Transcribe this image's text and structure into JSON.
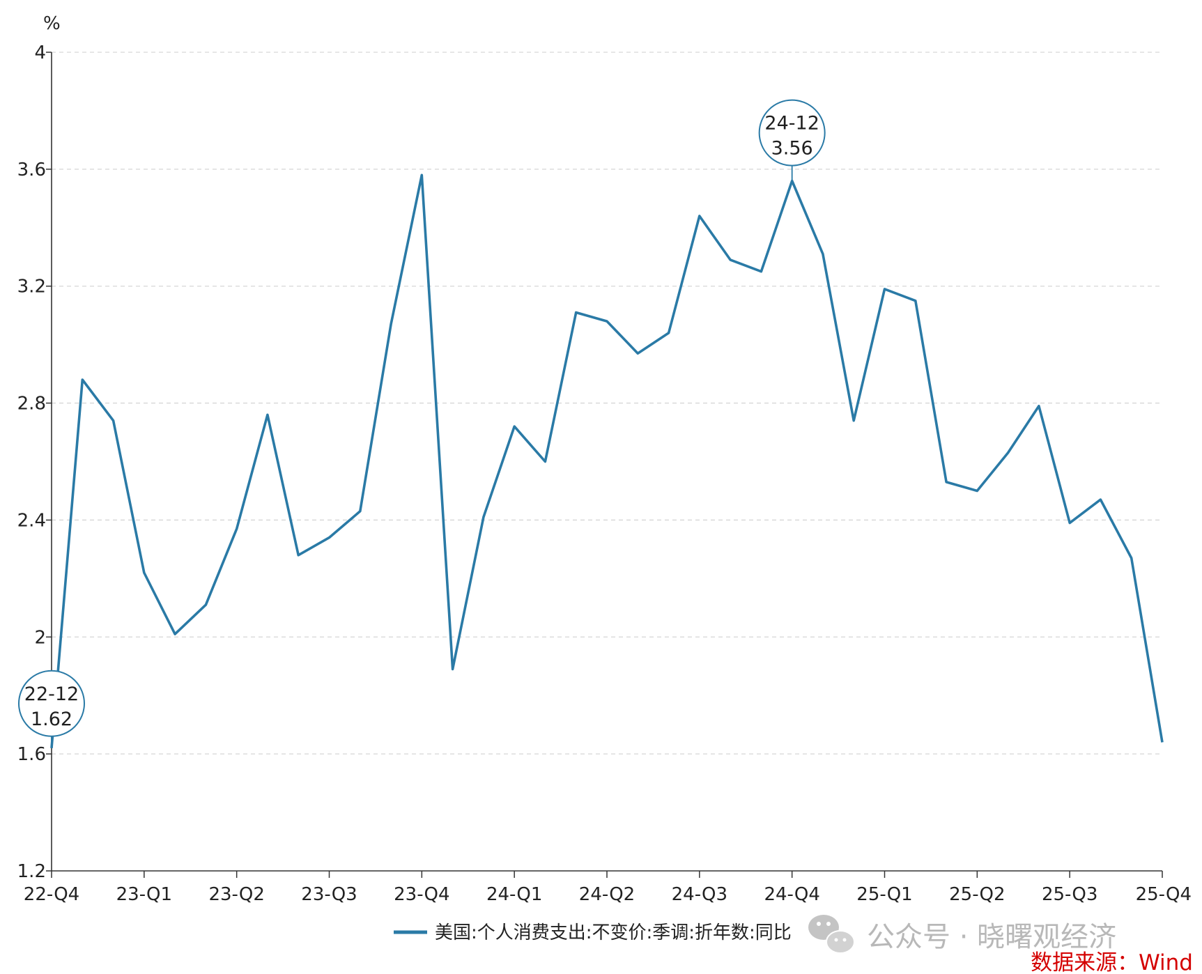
{
  "chart_data": {
    "type": "line",
    "unit": "%",
    "ylim": [
      1.2,
      4
    ],
    "yticks": [
      "1.2",
      "1.6",
      "2",
      "2.4",
      "2.8",
      "3.2",
      "3.6",
      "4"
    ],
    "xticks": [
      "22-Q4",
      "23-Q1",
      "23-Q2",
      "23-Q3",
      "23-Q4",
      "24-Q1",
      "24-Q2",
      "24-Q3",
      "24-Q4",
      "25-Q1",
      "25-Q2",
      "25-Q3",
      "25-Q4"
    ],
    "grid": true,
    "legend_position": "bottom",
    "color": "#2a7aa6",
    "series": [
      {
        "name": "美国:个人消费支出:不变价:季调:折年数:同比",
        "x": [
          "22-12",
          "23-01",
          "23-02",
          "23-03",
          "23-04",
          "23-05",
          "23-06",
          "23-07",
          "23-08",
          "23-09",
          "23-10",
          "23-11",
          "23-12",
          "24-01",
          "24-02",
          "24-03",
          "24-04",
          "24-05",
          "24-06",
          "24-07",
          "24-08",
          "24-09",
          "24-10",
          "24-11",
          "24-12",
          "25-01",
          "25-02",
          "25-03",
          "25-04",
          "25-05",
          "25-06",
          "25-07",
          "25-08",
          "25-09",
          "25-10",
          "25-11",
          "25-12"
        ],
        "values": [
          1.62,
          2.88,
          2.74,
          2.22,
          2.01,
          2.11,
          2.37,
          2.76,
          2.28,
          2.34,
          2.43,
          3.07,
          3.58,
          1.89,
          2.41,
          2.72,
          2.6,
          3.11,
          3.08,
          2.97,
          3.04,
          3.44,
          3.29,
          3.25,
          3.56,
          3.31,
          2.74,
          3.19,
          3.15,
          2.53,
          2.5,
          2.63,
          2.79,
          2.39,
          2.47,
          2.27,
          1.64
        ]
      }
    ],
    "annotations": [
      {
        "index": 0,
        "label": "22-12",
        "value": "1.62"
      },
      {
        "index": 24,
        "label": "24-12",
        "value": "3.56"
      }
    ]
  },
  "watermark": "公众号 · 晓曙观经济",
  "source": "数据来源：Wind"
}
